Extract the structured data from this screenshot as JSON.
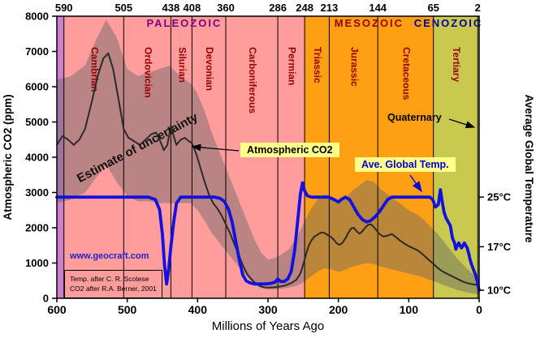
{
  "figure": {
    "x_axis": {
      "title": "Millions of Years Ago",
      "ticks": [
        600,
        500,
        400,
        300,
        200,
        100,
        0
      ]
    },
    "y_left": {
      "title": "Atmospheric CO2 (ppm)",
      "ticks": [
        0,
        1000,
        2000,
        3000,
        4000,
        5000,
        6000,
        7000,
        8000
      ]
    },
    "y_right": {
      "title": "Average Global Temperature",
      "ticks": [
        {
          "c": 25,
          "label": "25°C"
        },
        {
          "c": 17,
          "label": "17°C"
        },
        {
          "c": 10,
          "label": "10°C"
        }
      ]
    },
    "top_axis": {
      "boundary_labels": [
        590,
        505,
        438,
        408,
        360,
        286,
        248,
        213,
        144,
        65,
        2
      ]
    }
  },
  "eras": [
    {
      "label": "PALEOZOIC",
      "color": "#800080",
      "from": 590,
      "to": 248
    },
    {
      "label": "MESOZOIC",
      "color": "#990000",
      "from": 248,
      "to": 65
    },
    {
      "label": "CENOZOIC",
      "color": "#000099",
      "from": 65,
      "to": 2
    }
  ],
  "periods": [
    {
      "key": "precambrian",
      "label": "",
      "from": 600,
      "to": 590,
      "band_color": "#cc80cc",
      "label_color": "#990000"
    },
    {
      "key": "cambrian",
      "label": "Cambrian",
      "from": 590,
      "to": 505,
      "band_color": "#ff9d9d",
      "label_color": "#990000"
    },
    {
      "key": "ordovician",
      "label": "Ordovician",
      "from": 505,
      "to": 438,
      "band_color": "#ff9d9d",
      "label_color": "#990000"
    },
    {
      "key": "silurian",
      "label": "Silurian",
      "from": 438,
      "to": 408,
      "band_color": "#ff9d9d",
      "label_color": "#990000"
    },
    {
      "key": "devonian",
      "label": "Devonian",
      "from": 408,
      "to": 360,
      "band_color": "#ff9d9d",
      "label_color": "#990000"
    },
    {
      "key": "carboniferous",
      "label": "Carboniferous",
      "from": 360,
      "to": 286,
      "band_color": "#ff9d9d",
      "label_color": "#990000"
    },
    {
      "key": "permian",
      "label": "Permian",
      "from": 286,
      "to": 248,
      "band_color": "#ff9d9d",
      "label_color": "#990000"
    },
    {
      "key": "triassic",
      "label": "Triassic",
      "from": 248,
      "to": 213,
      "band_color": "#ffa014",
      "label_color": "#990000"
    },
    {
      "key": "jurassic",
      "label": "Jurassic",
      "from": 213,
      "to": 144,
      "band_color": "#ffa014",
      "label_color": "#990000"
    },
    {
      "key": "cretaceous",
      "label": "Cretaceous",
      "from": 144,
      "to": 65,
      "band_color": "#ffa014",
      "label_color": "#990000"
    },
    {
      "key": "tertiary",
      "label": "Tertiary",
      "from": 65,
      "to": 2,
      "band_color": "#c9c94f",
      "label_color": "#990000"
    },
    {
      "key": "quaternary",
      "label": "",
      "from": 2,
      "to": 0,
      "band_color": "#eeee99",
      "label_color": "#990000"
    }
  ],
  "annotations": {
    "uncertainty_label": "Estimate of uncertainty",
    "co2_label": "Atmospheric CO2",
    "temp_label": "Ave. Global Temp.",
    "quaternary_label": "Quaternary",
    "website": "www.geocraft.com",
    "credit_line1": "Temp. after C. R. Scotese",
    "credit_line2": "CO2 after R.A. Berner, 2001"
  },
  "chart_data": {
    "type": "line",
    "title": "",
    "xlabel": "Millions of Years Ago",
    "x_range": [
      600,
      0
    ],
    "grid": false,
    "y_left": {
      "label": "Atmospheric CO2 (ppm)",
      "range": [
        0,
        8000
      ]
    },
    "y_right": {
      "label": "Average Global Temperature",
      "ticks_c": [
        10,
        17,
        25
      ]
    },
    "series": [
      {
        "name": "Atmospheric CO2",
        "units": "ppm",
        "axis": "left",
        "color": "#2b2b2b",
        "x": [
          600,
          592,
          584,
          576,
          568,
          560,
          550,
          542,
          534,
          527,
          520,
          512,
          505,
          498,
          490,
          482,
          474,
          466,
          459,
          453,
          448,
          443,
          438,
          434,
          430,
          424,
          418,
          412,
          408,
          402,
          396,
          390,
          384,
          378,
          372,
          366,
          360,
          354,
          348,
          342,
          336,
          330,
          324,
          318,
          312,
          306,
          300,
          292,
          284,
          276,
          268,
          260,
          254,
          250,
          246,
          242,
          238,
          234,
          230,
          226,
          222,
          218,
          214,
          210,
          206,
          202,
          198,
          194,
          190,
          186,
          182,
          178,
          174,
          170,
          166,
          162,
          158,
          154,
          150,
          146,
          142,
          136,
          130,
          124,
          118,
          112,
          106,
          100,
          94,
          88,
          82,
          76,
          70,
          65,
          60,
          55,
          50,
          45,
          40,
          35,
          30,
          25,
          20,
          15,
          10,
          5,
          0
        ],
        "y": [
          4350,
          4600,
          4500,
          4350,
          4500,
          4800,
          5600,
          6300,
          6800,
          6950,
          6500,
          5600,
          4800,
          4550,
          4450,
          4350,
          4500,
          4650,
          4700,
          4450,
          4200,
          4350,
          4900,
          4600,
          4350,
          4500,
          4550,
          4450,
          4400,
          4100,
          3700,
          3300,
          2950,
          2700,
          2550,
          2350,
          2100,
          1850,
          1550,
          1250,
          950,
          700,
          550,
          430,
          350,
          310,
          300,
          310,
          330,
          360,
          420,
          520,
          700,
          950,
          1250,
          1500,
          1650,
          1750,
          1800,
          1850,
          1870,
          1830,
          1780,
          1730,
          1650,
          1550,
          1520,
          1580,
          1700,
          1850,
          1980,
          2000,
          1900,
          1830,
          1900,
          2000,
          2080,
          2100,
          2030,
          1930,
          1830,
          1750,
          1780,
          1820,
          1730,
          1630,
          1550,
          1480,
          1420,
          1370,
          1280,
          1170,
          1060,
          980,
          880,
          800,
          740,
          690,
          640,
          590,
          540,
          490,
          450,
          420,
          400,
          385,
          375
        ]
      },
      {
        "name": "Ave. Global Temp.",
        "units": "°C",
        "axis": "right",
        "color": "#1111e0",
        "x": [
          600,
          560,
          520,
          490,
          470,
          460,
          454,
          450,
          447,
          444,
          441,
          438,
          434,
          430,
          424,
          416,
          408,
          400,
          392,
          384,
          376,
          368,
          362,
          356,
          351,
          346,
          341,
          336,
          331,
          326,
          320,
          312,
          304,
          296,
          290,
          286,
          282,
          277,
          272,
          267,
          262,
          258,
          254,
          251,
          248,
          244,
          238,
          230,
          222,
          214,
          206,
          200,
          196,
          190,
          184,
          178,
          172,
          166,
          160,
          154,
          148,
          142,
          136,
          130,
          124,
          116,
          108,
          100,
          92,
          84,
          76,
          70,
          66,
          62,
          58,
          55,
          53,
          50,
          47,
          44,
          41,
          38,
          35,
          33,
          31,
          29,
          27,
          25,
          23,
          21,
          19,
          17,
          15,
          13,
          11,
          9,
          7,
          5,
          3,
          2,
          1,
          0
        ],
        "y": [
          25,
          25,
          25,
          25,
          25,
          24.6,
          23,
          19,
          14,
          11,
          13.5,
          17,
          21,
          24,
          25,
          25,
          25,
          25,
          25,
          25,
          25,
          24.8,
          24.3,
          23,
          21,
          18,
          15,
          12.5,
          11.5,
          11.2,
          11,
          11,
          11,
          11.1,
          11.3,
          11.8,
          11.4,
          11.4,
          11.8,
          13,
          16.5,
          21,
          25.5,
          27.3,
          26,
          25.2,
          25,
          25,
          25,
          25,
          24.6,
          24.2,
          24.6,
          25,
          24.6,
          23.4,
          22.2,
          21.4,
          21,
          21.2,
          21.8,
          22.6,
          23.6,
          24.6,
          25,
          25,
          25,
          25,
          25,
          25,
          25,
          25,
          24.6,
          23.4,
          23.8,
          26.2,
          24.6,
          22.6,
          21.6,
          21,
          20.4,
          18.4,
          17.6,
          16.6,
          17.2,
          17.6,
          17.2,
          16.8,
          17.2,
          17.6,
          17.2,
          16.8,
          16,
          15,
          14.2,
          13.6,
          13,
          12.4,
          11.6,
          11,
          10.4,
          10
        ]
      }
    ],
    "uncertainty_band": {
      "name": "Estimate of uncertainty",
      "x": [
        600,
        580,
        560,
        545,
        530,
        515,
        500,
        485,
        470,
        455,
        440,
        425,
        410,
        400,
        390,
        380,
        370,
        360,
        350,
        340,
        330,
        320,
        310,
        300,
        290,
        280,
        270,
        260,
        250,
        240,
        230,
        220,
        210,
        200,
        190,
        180,
        170,
        160,
        150,
        140,
        130,
        120,
        110,
        100,
        90,
        80,
        70,
        60,
        50,
        40,
        30,
        20,
        10,
        0
      ],
      "upper": [
        6200,
        6300,
        6600,
        7300,
        7900,
        7400,
        6500,
        6300,
        6400,
        6500,
        6600,
        6300,
        6100,
        5800,
        5300,
        4700,
        4200,
        3700,
        3200,
        2700,
        2200,
        1700,
        1300,
        1100,
        1150,
        1250,
        1400,
        1700,
        2100,
        2500,
        2800,
        2950,
        2900,
        2750,
        2850,
        3050,
        3200,
        3350,
        3300,
        3100,
        2950,
        2800,
        2650,
        2500,
        2400,
        2250,
        2050,
        1850,
        1600,
        1350,
        1100,
        900,
        700,
        550
      ],
      "lower": [
        2700,
        2800,
        3000,
        3400,
        3800,
        3300,
        2900,
        2750,
        2750,
        2700,
        2700,
        2700,
        2700,
        2500,
        2200,
        1850,
        1600,
        1350,
        1100,
        850,
        600,
        420,
        300,
        250,
        250,
        270,
        300,
        350,
        450,
        600,
        750,
        850,
        820,
        750,
        800,
        900,
        950,
        1000,
        970,
        900,
        850,
        800,
        750,
        700,
        650,
        600,
        520,
        450,
        370,
        300,
        230,
        180,
        140,
        110
      ]
    }
  }
}
